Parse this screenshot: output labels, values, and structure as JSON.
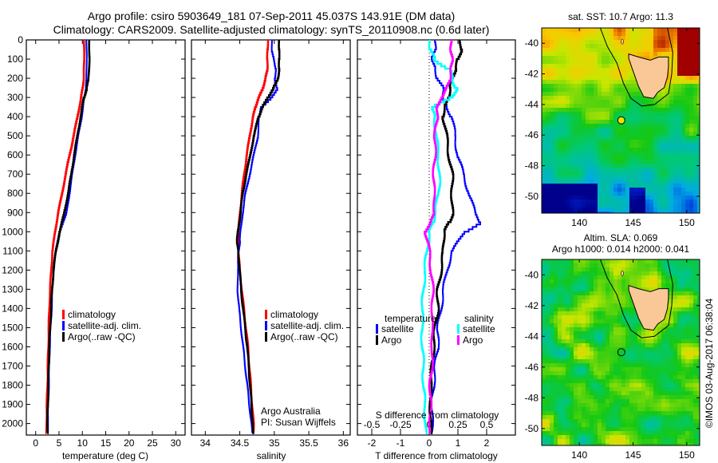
{
  "title": {
    "line1": "Argo profile: csiro 5903649_181 07-Sep-2011 45.037S 143.91E (DM data)",
    "line2": "Climatology: CARS2009. Satellite-adjusted climatology: synTS_20110908.nc (0.6d later)"
  },
  "colors": {
    "climatology": "#ff0000",
    "satellite": "#0000ff",
    "argo": "#000000",
    "sal_satellite": "#00ffff",
    "sal_argo": "#ff00ff"
  },
  "chart_data": [
    {
      "type": "line",
      "name": "temperature-profile",
      "xlabel": "temperature (deg C)",
      "ylabel": "",
      "xlim": [
        -2,
        32
      ],
      "ylim": [
        2060,
        0
      ],
      "xticks": [
        0,
        5,
        10,
        15,
        20,
        25,
        30
      ],
      "yticks": [
        0,
        100,
        200,
        300,
        400,
        500,
        600,
        700,
        800,
        900,
        1000,
        1100,
        1200,
        1300,
        1400,
        1500,
        1600,
        1700,
        1800,
        1900,
        2000
      ],
      "legend": [
        "climatology",
        "satellite-adj. clim.",
        "Argo(..raw -QC)"
      ],
      "legend_position": "middle-right",
      "depth": [
        0,
        100,
        200,
        250,
        300,
        400,
        500,
        600,
        700,
        800,
        900,
        1000,
        1100,
        1200,
        1300,
        1400,
        1500,
        1600,
        1700,
        1800,
        1900,
        2000,
        2050
      ],
      "series": [
        {
          "name": "climatology",
          "values": [
            10.3,
            10.4,
            10.3,
            10.0,
            9.7,
            8.9,
            8.1,
            7.2,
            6.4,
            5.6,
            4.8,
            4.1,
            3.6,
            3.3,
            3.1,
            2.9,
            2.8,
            2.7,
            2.6,
            2.5,
            2.4,
            2.3,
            2.3
          ]
        },
        {
          "name": "satellite-adj. clim.",
          "values": [
            10.9,
            10.9,
            10.9,
            10.7,
            10.4,
            9.8,
            9.1,
            8.4,
            7.8,
            7.2,
            6.6,
            5.0,
            4.3,
            3.8,
            3.6,
            3.4,
            3.2,
            3.0,
            2.9,
            2.8,
            2.7,
            2.6,
            2.6
          ]
        },
        {
          "name": "Argo(..raw -QC)",
          "values": [
            11.5,
            11.5,
            11.3,
            10.9,
            10.3,
            9.6,
            8.9,
            8.2,
            7.6,
            6.9,
            6.1,
            5.1,
            4.3,
            3.8,
            3.5,
            3.3,
            3.1,
            2.9,
            2.8,
            2.7,
            2.6,
            2.5,
            2.5
          ]
        }
      ]
    },
    {
      "type": "line",
      "name": "salinity-profile",
      "xlabel": "salinity",
      "xlim": [
        33.8,
        36.1
      ],
      "ylim": [
        2060,
        0
      ],
      "xticks": [
        34,
        34.5,
        35,
        35.5,
        36
      ],
      "legend": [
        "climatology",
        "satellite-adj. clim.",
        "Argo(..raw -QC)"
      ],
      "legend_position": "middle-right",
      "annotation": [
        "Argo Australia",
        "PI: Susan Wijffels"
      ],
      "depth": [
        0,
        50,
        100,
        150,
        200,
        250,
        300,
        350,
        400,
        500,
        600,
        700,
        800,
        900,
        1000,
        1050,
        1100,
        1200,
        1300,
        1400,
        1500,
        1600,
        1700,
        1800,
        1900,
        2000,
        2050
      ],
      "series": [
        {
          "name": "climatology",
          "values": [
            34.91,
            34.9,
            34.9,
            34.9,
            34.87,
            34.83,
            34.77,
            34.72,
            34.69,
            34.64,
            34.6,
            34.56,
            34.53,
            34.5,
            34.48,
            34.48,
            34.48,
            34.5,
            34.53,
            34.56,
            34.59,
            34.62,
            34.64,
            34.66,
            34.68,
            34.7,
            34.7
          ]
        },
        {
          "name": "satellite-adj. clim.",
          "values": [
            34.97,
            34.96,
            35.0,
            35.02,
            35.01,
            35.04,
            34.95,
            34.8,
            34.78,
            34.76,
            34.7,
            34.64,
            34.58,
            34.54,
            34.51,
            34.5,
            34.48,
            34.47,
            34.47,
            34.49,
            34.52,
            34.55,
            34.58,
            34.61,
            34.64,
            34.67,
            34.68
          ]
        },
        {
          "name": "Argo(..raw -QC)",
          "values": [
            35.07,
            35.07,
            35.07,
            35.07,
            35.05,
            34.98,
            34.9,
            34.82,
            34.77,
            34.7,
            34.65,
            34.59,
            34.54,
            34.51,
            34.47,
            34.46,
            34.48,
            34.5,
            34.52,
            34.55,
            34.58,
            34.61,
            34.63,
            34.65,
            34.67,
            34.69,
            34.69
          ]
        }
      ]
    },
    {
      "type": "line",
      "name": "difference-profile",
      "xlabel": "T difference from climatology",
      "xlim": [
        -2.5,
        3
      ],
      "ylim": [
        2060,
        0
      ],
      "xticks": [
        -2,
        -1,
        0,
        1,
        2
      ],
      "top_label": "S difference from climatology",
      "top_xticks": [
        "-0.5",
        "-0.25",
        "0",
        "0.25",
        "0.5"
      ],
      "legend": {
        "temperature_header": "temperature",
        "salinity_header": "salinity",
        "items": [
          "satellite",
          "Argo",
          "satellite",
          "Argo"
        ]
      },
      "legend_position": "lower-middle",
      "depth": [
        0,
        50,
        100,
        150,
        200,
        250,
        300,
        350,
        400,
        500,
        600,
        700,
        800,
        900,
        950,
        1000,
        1100,
        1200,
        1300,
        1400,
        1500,
        1600,
        1700,
        1800,
        1900,
        2000,
        2050
      ],
      "series": [
        {
          "name": "temperature satellite",
          "values": [
            0.2,
            0.2,
            0.1,
            0.2,
            0.3,
            0.5,
            0.5,
            0.6,
            0.8,
            0.9,
            1.0,
            1.2,
            1.4,
            1.6,
            1.8,
            1.2,
            0.8,
            0.6,
            0.5,
            0.4,
            0.3,
            0.3,
            0.2,
            0.15,
            0.1,
            0.1,
            0.1
          ]
        },
        {
          "name": "temperature Argo",
          "values": [
            1.1,
            1.1,
            1.0,
            0.9,
            0.8,
            0.7,
            0.7,
            0.5,
            0.5,
            0.6,
            0.7,
            0.8,
            0.8,
            0.8,
            0.7,
            0.5,
            0.5,
            0.4,
            0.3,
            0.3,
            0.2,
            0.15,
            0.1,
            0.05,
            0.05,
            0.05,
            0.05
          ]
        },
        {
          "name": "salinity satellite",
          "values": [
            0.01,
            0.01,
            0.05,
            0.18,
            0.2,
            0.24,
            0.18,
            0.02,
            0.05,
            0.06,
            0.08,
            0.09,
            0.08,
            0.05,
            0.03,
            0.0,
            -0.02,
            -0.04,
            -0.05,
            -0.06,
            -0.06,
            -0.06,
            -0.05,
            -0.05,
            -0.04,
            -0.03,
            -0.03
          ]
        },
        {
          "name": "salinity Argo",
          "values": [
            0.19,
            0.19,
            0.2,
            0.19,
            0.18,
            0.15,
            0.1,
            0.07,
            0.07,
            0.05,
            0.05,
            0.04,
            0.04,
            0.05,
            0.0,
            -0.03,
            0.0,
            0.02,
            0.03,
            0.03,
            0.02,
            0.03,
            0.02,
            0.01,
            0.01,
            0.01,
            0.01
          ]
        }
      ]
    },
    {
      "type": "heatmap",
      "name": "sst-map",
      "title": "sat. SST: 10.7 Argo: 11.3",
      "xlim": [
        136.5,
        151.2
      ],
      "ylim": [
        -51.1,
        -39.0
      ],
      "xticks": [
        140,
        145,
        150
      ],
      "yticks": [
        -40,
        -42,
        -44,
        -46,
        -48,
        -50
      ],
      "profile_location": {
        "lon": 143.91,
        "lat": -45.037
      }
    },
    {
      "type": "heatmap",
      "name": "sla-map",
      "title_line1": "Altim. SLA: 0.069",
      "title_line2": "Argo h1000: 0.014 h2000: 0.041",
      "xlim": [
        136.5,
        151.2
      ],
      "ylim": [
        -51.1,
        -39.0
      ],
      "xticks": [
        140,
        145,
        150
      ],
      "yticks": [
        -40,
        -42,
        -44,
        -46,
        -48,
        -50
      ],
      "profile_location": {
        "lon": 143.91,
        "lat": -45.037
      }
    }
  ],
  "credit": "©IMOS 03-Aug-2017 06:38:04"
}
